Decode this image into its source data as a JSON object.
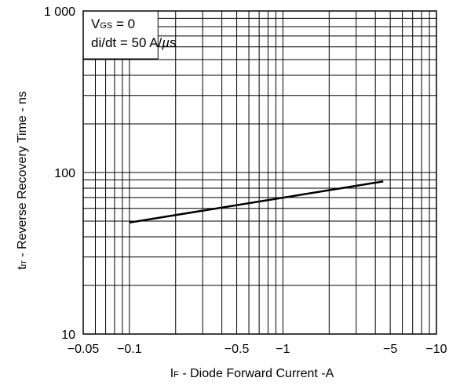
{
  "chart_data": {
    "type": "line",
    "title": "",
    "xlabel": {
      "main": "I",
      "sub": "F",
      "rest": " - Diode Forward Current -A"
    },
    "ylabel": {
      "main": "t",
      "sub": "rr",
      "rest": " - Reverse Recovery Time - ns"
    },
    "x_scale": "log",
    "y_scale": "log",
    "xlim": [
      0.05,
      10
    ],
    "ylim": [
      10,
      1000
    ],
    "x_ticks": [
      {
        "value": 0.05,
        "label": "−0.05"
      },
      {
        "value": 0.1,
        "label": "−0.1"
      },
      {
        "value": 0.5,
        "label": "−0.5"
      },
      {
        "value": 1,
        "label": "−1"
      },
      {
        "value": 5,
        "label": "−5"
      },
      {
        "value": 10,
        "label": "−10"
      }
    ],
    "y_ticks": [
      {
        "value": 10,
        "label": "10"
      },
      {
        "value": 100,
        "label": "100"
      },
      {
        "value": 1000,
        "label": "1 000"
      }
    ],
    "grid": true,
    "annotations": [
      {
        "main": "V",
        "sub": "GS",
        "rest": " = 0"
      },
      {
        "main": "di/dt = 50 A/",
        "italic": "µ",
        "rest": "s"
      }
    ],
    "series": [
      {
        "x": [
          0.1,
          4.5
        ],
        "y": [
          49,
          88
        ]
      }
    ]
  }
}
